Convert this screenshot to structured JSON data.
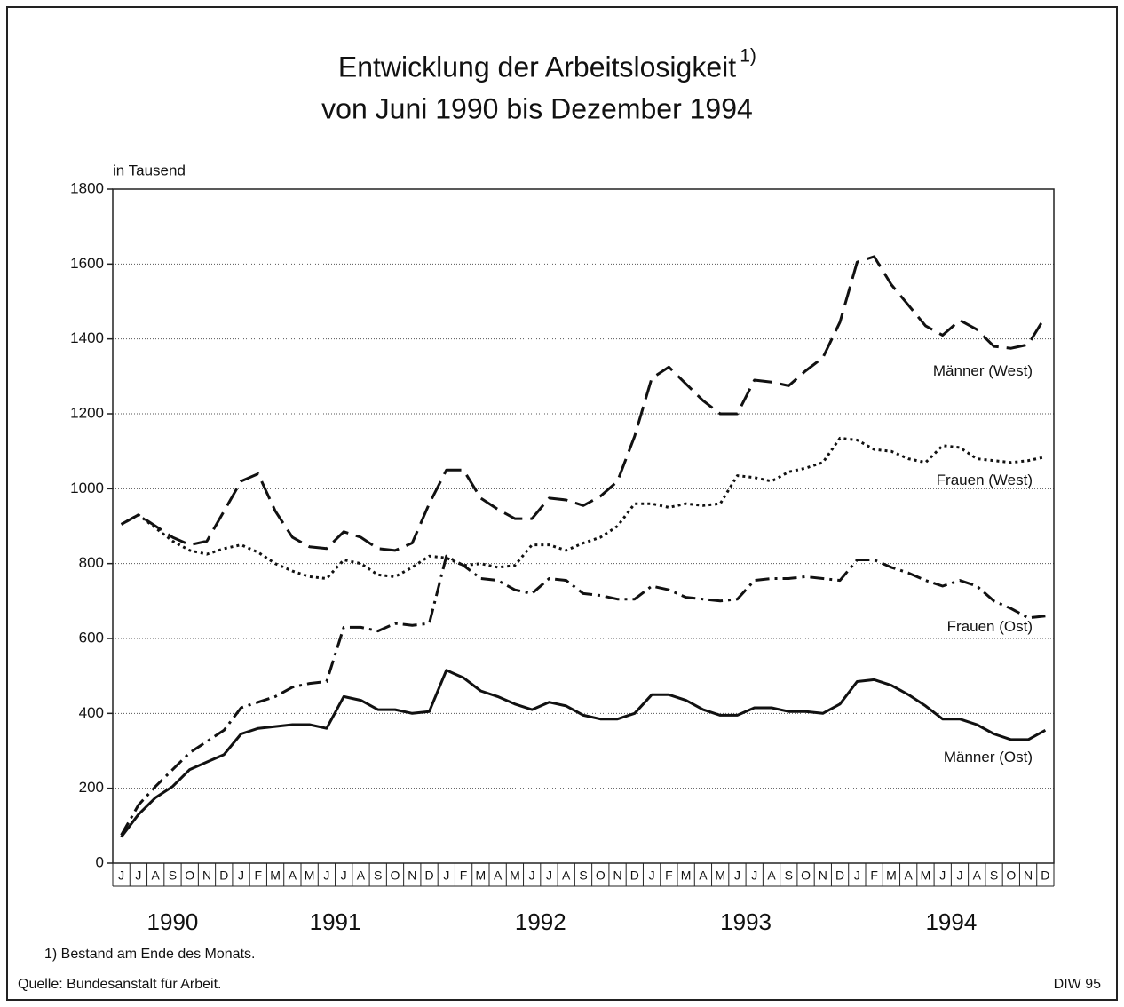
{
  "chart_data": {
    "type": "line",
    "title": "Entwicklung der Arbeitslosigkeit",
    "title_sup": "1)",
    "subtitle": "von Juni 1990 bis Dezember 1994",
    "y_label": "in Tausend",
    "footnote": "1) Bestand am Ende des Monats.",
    "source": "Quelle: Bundesanstalt für Arbeit.",
    "credit": "DIW 95",
    "categories": [
      "J",
      "J",
      "A",
      "S",
      "O",
      "N",
      "D",
      "J",
      "F",
      "M",
      "A",
      "M",
      "J",
      "J",
      "A",
      "S",
      "O",
      "N",
      "D",
      "J",
      "F",
      "M",
      "A",
      "M",
      "J",
      "J",
      "A",
      "S",
      "O",
      "N",
      "D",
      "J",
      "F",
      "M",
      "A",
      "M",
      "J",
      "J",
      "A",
      "S",
      "O",
      "N",
      "D",
      "J",
      "F",
      "M",
      "A",
      "M",
      "J",
      "J",
      "A",
      "S",
      "O",
      "N",
      "D"
    ],
    "years": [
      "1990",
      "1991",
      "1992",
      "1993",
      "1994"
    ],
    "ylim": [
      0,
      1800
    ],
    "yticks": [
      0,
      200,
      400,
      600,
      800,
      1000,
      1200,
      1400,
      1600,
      1800
    ],
    "grid": true,
    "series": [
      {
        "name": "Männer (West)",
        "color": "#111111",
        "line_style": "dashed",
        "values": [
          905,
          930,
          900,
          870,
          850,
          860,
          940,
          1020,
          1040,
          940,
          870,
          845,
          840,
          885,
          870,
          840,
          835,
          855,
          960,
          1050,
          1050,
          975,
          945,
          920,
          920,
          975,
          970,
          955,
          980,
          1020,
          1140,
          1295,
          1325,
          1280,
          1235,
          1200,
          1200,
          1290,
          1285,
          1275,
          1315,
          1350,
          1445,
          1605,
          1620,
          1545,
          1490,
          1435,
          1410,
          1450,
          1425,
          1380,
          1375,
          1385,
          1460
        ]
      },
      {
        "name": "Frauen (West)",
        "color": "#111111",
        "line_style": "dotted",
        "values": [
          905,
          930,
          895,
          860,
          835,
          825,
          840,
          850,
          830,
          800,
          780,
          765,
          760,
          810,
          800,
          770,
          765,
          790,
          820,
          815,
          795,
          800,
          790,
          795,
          850,
          850,
          835,
          855,
          870,
          900,
          960,
          960,
          950,
          960,
          955,
          960,
          1035,
          1030,
          1020,
          1045,
          1055,
          1070,
          1135,
          1130,
          1105,
          1100,
          1080,
          1070,
          1115,
          1110,
          1080,
          1075,
          1070,
          1075,
          1085
        ]
      },
      {
        "name": "Frauen (Ost)",
        "color": "#111111",
        "line_style": "dashdot",
        "values": [
          75,
          155,
          205,
          250,
          295,
          325,
          355,
          415,
          430,
          445,
          470,
          480,
          485,
          630,
          630,
          620,
          640,
          635,
          640,
          820,
          795,
          760,
          755,
          730,
          720,
          760,
          755,
          720,
          715,
          705,
          705,
          740,
          730,
          710,
          705,
          700,
          705,
          755,
          760,
          760,
          765,
          760,
          755,
          810,
          810,
          790,
          775,
          755,
          740,
          755,
          740,
          700,
          680,
          655,
          660
        ]
      },
      {
        "name": "Männer (Ost)",
        "color": "#111111",
        "line_style": "solid",
        "values": [
          70,
          130,
          175,
          205,
          250,
          270,
          290,
          345,
          360,
          365,
          370,
          370,
          360,
          445,
          435,
          410,
          410,
          400,
          405,
          515,
          495,
          460,
          445,
          425,
          410,
          430,
          420,
          395,
          385,
          385,
          400,
          450,
          450,
          435,
          410,
          395,
          395,
          415,
          415,
          405,
          405,
          400,
          425,
          485,
          490,
          475,
          450,
          420,
          385,
          385,
          370,
          345,
          330,
          330,
          355
        ]
      }
    ]
  }
}
